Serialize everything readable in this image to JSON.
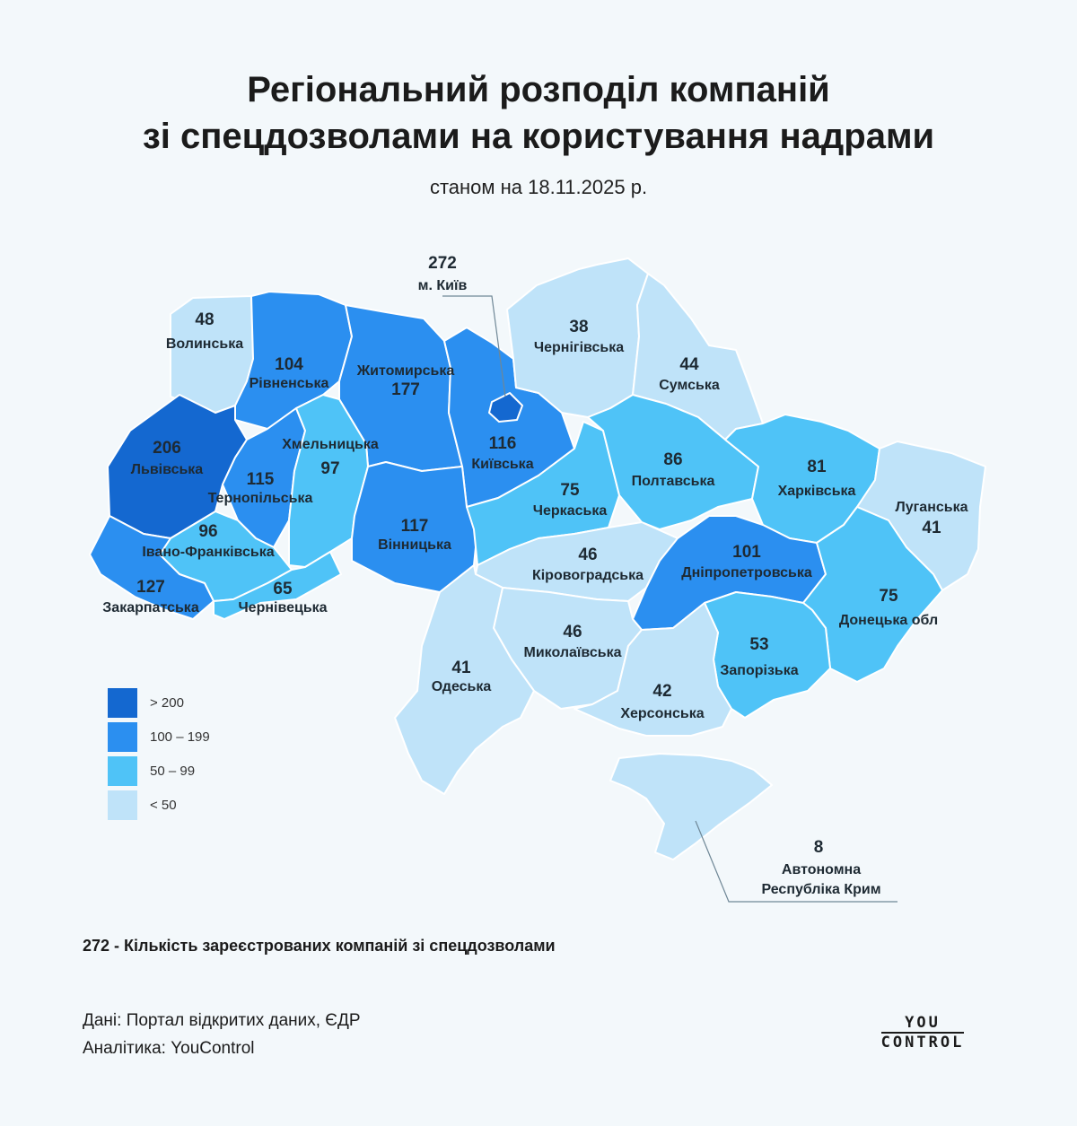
{
  "title_line1": "Регіональний розподіл компаній",
  "title_line2": "зі спецдозволами на користування надрами",
  "subtitle": "станом на 18.11.2025 р.",
  "colors": {
    "gt200": "#1468d0",
    "100_199": "#2b8ff0",
    "50_99": "#4fc3f7",
    "lt50": "#bfe3f9",
    "border": "#ffffff",
    "background": "#f3f8fb"
  },
  "legend": [
    {
      "label": "> 200",
      "color": "#1468d0"
    },
    {
      "label": "100 – 199",
      "color": "#2b8ff0"
    },
    {
      "label": "50 – 99",
      "color": "#4fc3f7"
    },
    {
      "label": "< 50",
      "color": "#bfe3f9"
    }
  ],
  "regions": [
    {
      "id": "volyn",
      "name": "Волинська",
      "count": 48
    },
    {
      "id": "rivne",
      "name": "Рівненська",
      "count": 104
    },
    {
      "id": "zhytomyr",
      "name": "Житомирська",
      "count": 177
    },
    {
      "id": "kyiv_city",
      "name": "м. Київ",
      "count": 272
    },
    {
      "id": "kyiv_obl",
      "name": "Київська",
      "count": 116
    },
    {
      "id": "chernihiv",
      "name": "Чернігівська",
      "count": 38
    },
    {
      "id": "sumy",
      "name": "Сумська",
      "count": 44
    },
    {
      "id": "lviv",
      "name": "Львівська",
      "count": 206
    },
    {
      "id": "ternopil",
      "name": "Тернопільська",
      "count": 115
    },
    {
      "id": "khmelnytskyi",
      "name": "Хмельницька",
      "count": 97
    },
    {
      "id": "vinnytsia",
      "name": "Вінницька",
      "count": 117
    },
    {
      "id": "cherkasy",
      "name": "Черкаська",
      "count": 75
    },
    {
      "id": "poltava",
      "name": "Полтавська",
      "count": 86
    },
    {
      "id": "kharkiv",
      "name": "Харківська",
      "count": 81
    },
    {
      "id": "luhansk",
      "name": "Луганська",
      "count": 41
    },
    {
      "id": "ivano_frankivsk",
      "name": "Івано-Франківська",
      "count": 96
    },
    {
      "id": "zakarpattia",
      "name": "Закарпатська",
      "count": 127
    },
    {
      "id": "chernivtsi",
      "name": "Чернівецька",
      "count": 65
    },
    {
      "id": "kirovohrad",
      "name": "Кіровоградська",
      "count": 46
    },
    {
      "id": "dnipro",
      "name": "Дніпропетровська",
      "count": 101
    },
    {
      "id": "donetsk",
      "name": "Донецька обл",
      "count": 75
    },
    {
      "id": "mykolaiv",
      "name": "Миколаївська",
      "count": 46
    },
    {
      "id": "odesa",
      "name": "Одеська",
      "count": 41
    },
    {
      "id": "zaporizhzhia",
      "name": "Запорізька",
      "count": 53
    },
    {
      "id": "kherson",
      "name": "Херсонська",
      "count": 42
    },
    {
      "id": "crimea",
      "name": "Автономна Республіка Крим",
      "name_line1": "Автономна",
      "name_line2": "Республіка Крим",
      "count": 8
    }
  ],
  "note": "272 - Кількість зареєстрованих компаній зі спецдозволами",
  "source_line1": "Дані: Портал відкритих даних, ЄДР",
  "source_line2": "Аналітика: YouControl",
  "logo_line1": "YOU",
  "logo_line2": "CONTROL"
}
